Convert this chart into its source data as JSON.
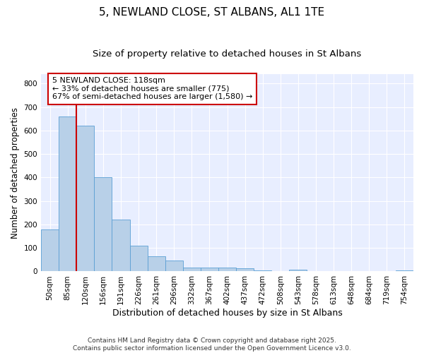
{
  "title": "5, NEWLAND CLOSE, ST ALBANS, AL1 1TE",
  "subtitle": "Size of property relative to detached houses in St Albans",
  "xlabel": "Distribution of detached houses by size in St Albans",
  "ylabel": "Number of detached properties",
  "categories": [
    "50sqm",
    "85sqm",
    "120sqm",
    "156sqm",
    "191sqm",
    "226sqm",
    "261sqm",
    "296sqm",
    "332sqm",
    "367sqm",
    "402sqm",
    "437sqm",
    "472sqm",
    "508sqm",
    "543sqm",
    "578sqm",
    "613sqm",
    "648sqm",
    "684sqm",
    "719sqm",
    "754sqm"
  ],
  "values": [
    180,
    660,
    620,
    400,
    220,
    110,
    65,
    47,
    15,
    15,
    15,
    12,
    5,
    0,
    8,
    0,
    0,
    0,
    0,
    0,
    5
  ],
  "bar_color": "#b8d0e8",
  "bar_edge_color": "#5a9fd4",
  "marker_line_index": 2,
  "marker_line_color": "#cc0000",
  "annotation_text": "5 NEWLAND CLOSE: 118sqm\n← 33% of detached houses are smaller (775)\n67% of semi-detached houses are larger (1,580) →",
  "annotation_box_color": "#ffffff",
  "annotation_box_edge": "#cc0000",
  "ylim": [
    0,
    840
  ],
  "yticks": [
    0,
    100,
    200,
    300,
    400,
    500,
    600,
    700,
    800
  ],
  "background_color": "#e8eeff",
  "grid_color": "#ffffff",
  "footer_text": "Contains HM Land Registry data © Crown copyright and database right 2025.\nContains public sector information licensed under the Open Government Licence v3.0.",
  "title_fontsize": 11,
  "subtitle_fontsize": 9.5,
  "xlabel_fontsize": 9,
  "ylabel_fontsize": 8.5,
  "tick_fontsize": 7.5,
  "annotation_fontsize": 8,
  "footer_fontsize": 6.5
}
